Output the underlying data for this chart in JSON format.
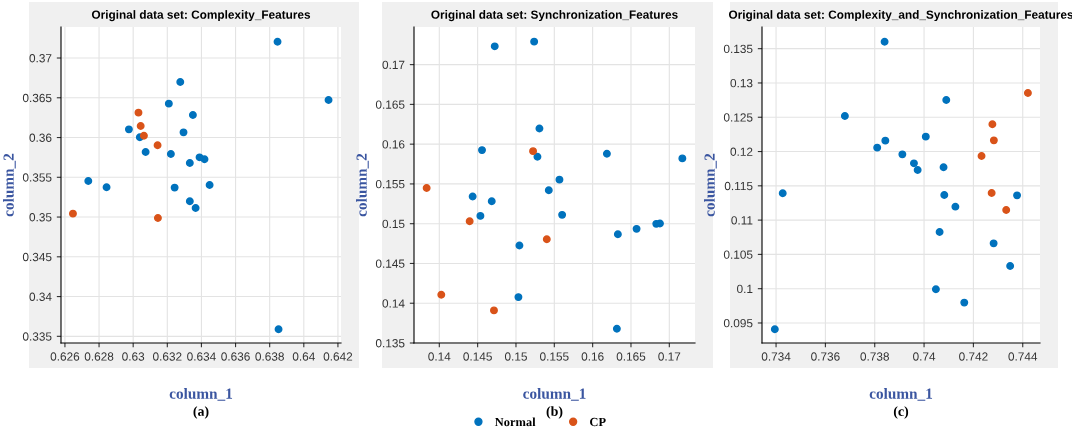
{
  "chart_data": [
    {
      "type": "scatter",
      "title": "Original data set: Complexity_Features",
      "xlabel": "column_1",
      "ylabel": "column_2",
      "annotations": [
        "(a)"
      ],
      "grid": true,
      "marker": "circle",
      "legend": "bottom",
      "xlim": [
        0.62577,
        0.64218
      ],
      "ylim": [
        0.33416,
        0.3739
      ],
      "xticks": [
        0.626,
        0.628,
        0.63,
        0.632,
        0.634,
        0.636,
        0.638,
        0.64,
        0.642
      ],
      "yticks": [
        0.335,
        0.34,
        0.345,
        0.35,
        0.355,
        0.36,
        0.365,
        0.37
      ],
      "series": [
        {
          "name": "Normal",
          "color": "#0072bd",
          "x": [
            0.63846,
            0.64145,
            0.63276,
            0.63209,
            0.6335,
            0.63295,
            0.62975,
            0.63039,
            0.63073,
            0.63221,
            0.63389,
            0.63418,
            0.63332,
            0.63448,
            0.62737,
            0.62844,
            0.63243,
            0.63332,
            0.63366,
            0.63852
          ],
          "values": [
            0.37205,
            0.36472,
            0.36698,
            0.36426,
            0.36283,
            0.36065,
            0.36103,
            0.36003,
            0.35818,
            0.35793,
            0.35751,
            0.35726,
            0.3568,
            0.35403,
            0.35453,
            0.35374,
            0.3537,
            0.35198,
            0.35114,
            0.33588
          ]
        },
        {
          "name": "CP",
          "color": "#d95319",
          "x": [
            0.63031,
            0.63044,
            0.63063,
            0.63143,
            0.62647,
            0.63145
          ],
          "values": [
            0.36313,
            0.36145,
            0.36023,
            0.35902,
            0.35043,
            0.34988
          ]
        }
      ]
    },
    {
      "type": "scatter",
      "title": "Original data set: Synchronization_Features",
      "xlabel": "column_1",
      "ylabel": "column_2",
      "annotations": [
        "(b)"
      ],
      "grid": true,
      "marker": "circle",
      "xlim": [
        0.1367,
        0.17335
      ],
      "ylim": [
        0.135,
        0.17473
      ],
      "xticks": [
        0.14,
        0.145,
        0.15,
        0.155,
        0.16,
        0.165,
        0.17
      ],
      "yticks": [
        0.135,
        0.14,
        0.145,
        0.15,
        0.155,
        0.16,
        0.165,
        0.17
      ],
      "series": [
        {
          "color": "#0072bd",
          "x": [
            0.14723,
            0.15237,
            0.15306,
            0.14557,
            0.1528,
            0.16186,
            0.1717,
            0.15567,
            0.15428,
            0.14435,
            0.14684,
            0.14536,
            0.15602,
            0.1683,
            0.16878,
            0.16573,
            0.16329,
            0.15045,
            0.15032,
            0.16316
          ],
          "values": [
            0.1723,
            0.17289,
            0.16197,
            0.15925,
            0.15842,
            0.15879,
            0.15821,
            0.15554,
            0.1542,
            0.15341,
            0.15282,
            0.15098,
            0.15111,
            0.14998,
            0.15002,
            0.14935,
            0.14868,
            0.14726,
            0.14077,
            0.1368
          ]
        },
        {
          "color": "#d95319",
          "x": [
            0.13835,
            0.15223,
            0.14396,
            0.15402,
            0.14026,
            0.14713
          ],
          "values": [
            0.15449,
            0.15912,
            0.1503,
            0.14805,
            0.14106,
            0.1391
          ]
        }
      ]
    },
    {
      "type": "scatter",
      "title": "Original data set: Complexity_and_Synchronization_Features",
      "xlabel": "column_1",
      "ylabel": "column_2",
      "annotations": [
        "(c)"
      ],
      "grid": true,
      "marker": "circle",
      "xlim": [
        0.73343,
        0.7447
      ],
      "ylim": [
        0.09208,
        0.13816
      ],
      "xticks": [
        0.734,
        0.736,
        0.738,
        0.74,
        0.742,
        0.744
      ],
      "yticks": [
        0.095,
        0.1,
        0.105,
        0.11,
        0.115,
        0.12,
        0.125,
        0.13,
        0.135
      ],
      "series": [
        {
          "color": "#0072bd",
          "x": [
            0.7384,
            0.7409,
            0.73679,
            0.74007,
            0.73843,
            0.7381,
            0.73912,
            0.73959,
            0.73974,
            0.74079,
            0.73427,
            0.74082,
            0.74377,
            0.74127,
            0.74063,
            0.74282,
            0.74349,
            0.74048,
            0.74163,
            0.73395
          ],
          "values": [
            0.13602,
            0.12751,
            0.12518,
            0.12217,
            0.12159,
            0.12057,
            0.11959,
            0.11828,
            0.11731,
            0.1177,
            0.11391,
            0.11366,
            0.11361,
            0.11196,
            0.10827,
            0.10661,
            0.10331,
            0.09991,
            0.09797,
            0.09408
          ]
        },
        {
          "color": "#d95319",
          "x": [
            0.74421,
            0.74277,
            0.74283,
            0.74233,
            0.74274,
            0.74333
          ],
          "values": [
            0.12853,
            0.12397,
            0.12163,
            0.11935,
            0.11396,
            0.11148
          ]
        }
      ]
    }
  ]
}
